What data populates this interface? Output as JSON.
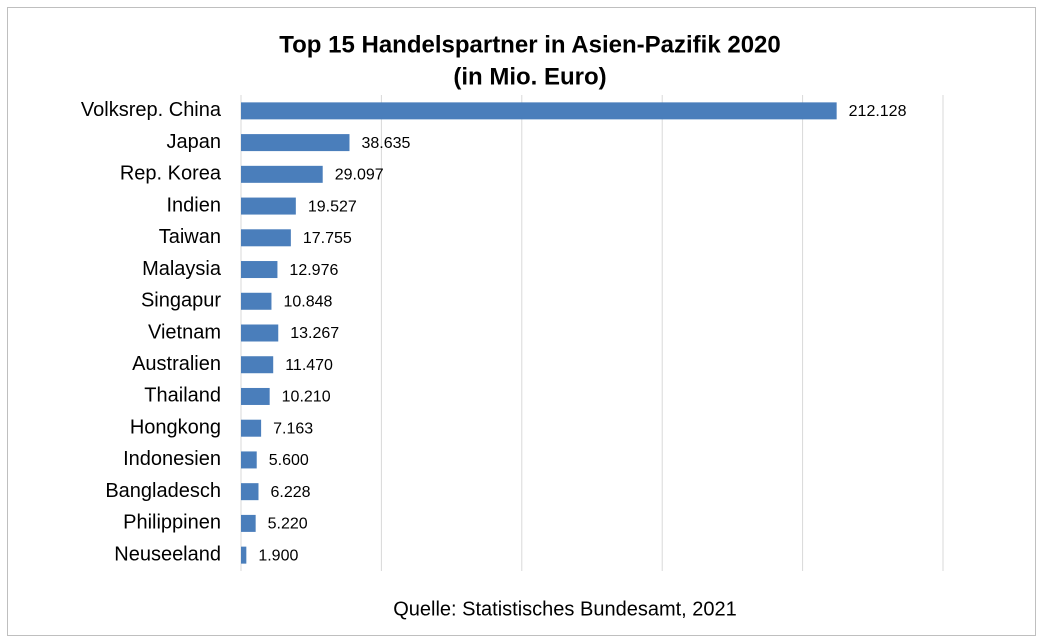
{
  "chart_data": {
    "type": "barh",
    "title": "Top 15 Handelspartner in Asien-Pazifik 2020",
    "subtitle": "(in Mio. Euro)",
    "source": "Quelle: Statistisches Bundesamt, 2021",
    "categories": [
      "Volksrep. China",
      "Japan",
      "Rep. Korea",
      "Indien",
      "Taiwan",
      "Malaysia",
      "Singapur",
      "Vietnam",
      "Australien",
      "Thailand",
      "Hongkong",
      "Indonesien",
      "Bangladesch",
      "Philippinen",
      "Neuseeland"
    ],
    "values": [
      212128,
      38635,
      29097,
      19527,
      17755,
      12976,
      10848,
      13267,
      11470,
      10210,
      7163,
      5600,
      6228,
      5220,
      1900
    ],
    "value_labels": [
      "212.128",
      "38.635",
      "29.097",
      "19.527",
      "17.755",
      "12.976",
      "10.848",
      "13.267",
      "11.470",
      "10.210",
      "7.163",
      "5.600",
      "6.228",
      "5.220",
      "1.900"
    ],
    "color": "#4a7ebb",
    "xlim": [
      0,
      250000
    ],
    "xticks": [
      0,
      50000,
      100000,
      150000,
      200000,
      250000
    ],
    "grid": true
  }
}
